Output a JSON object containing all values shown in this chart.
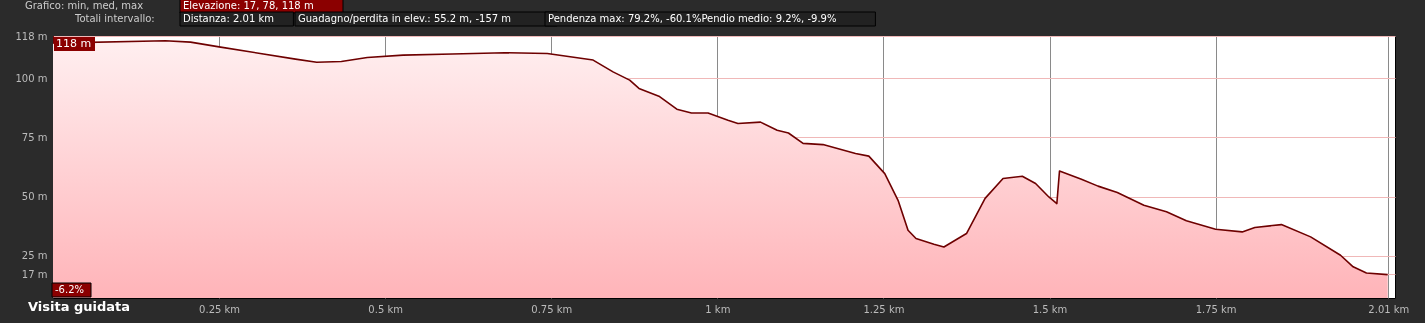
{
  "chart_data": {
    "type": "area",
    "x": [
      0,
      0.001,
      0.169,
      0.207,
      0.25,
      0.365,
      0.397,
      0.434,
      0.473,
      0.527,
      0.601,
      0.68,
      0.744,
      0.813,
      0.843,
      0.868,
      0.882,
      0.912,
      0.939,
      0.961,
      0.986,
      1.016,
      1.031,
      1.065,
      1.09,
      1.107,
      1.129,
      1.159,
      1.208,
      1.228,
      1.252,
      1.272,
      1.287,
      1.299,
      1.326,
      1.341,
      1.375,
      1.403,
      1.43,
      1.459,
      1.479,
      1.499,
      1.511,
      1.515,
      1.548,
      1.573,
      1.602,
      1.642,
      1.676,
      1.706,
      1.75,
      1.79,
      1.809,
      1.849,
      1.893,
      1.938,
      1.957,
      1.977,
      2.009
    ],
    "series": [
      {
        "color": "#6e0000",
        "values": [
          118,
          115,
          116,
          115.4,
          113.4,
          108.2,
          106.9,
          107.2,
          108.9,
          109.9,
          110.4,
          110.9,
          110.6,
          107.8,
          102.8,
          99.3,
          95.8,
          92.5,
          87,
          85.4,
          85.4,
          82.3,
          80.9,
          81.5,
          78.1,
          76.9,
          72.5,
          72,
          68.2,
          67.1,
          59.7,
          48.4,
          35.7,
          32.2,
          29.8,
          28.6,
          34.3,
          49.2,
          57.6,
          58.6,
          55.5,
          49.8,
          47,
          60.8,
          57.3,
          54.4,
          51.7,
          46.3,
          43.5,
          39.7,
          36.1,
          35,
          36.9,
          38.1,
          32.9,
          25.1,
          20.2,
          17.6,
          16.9
        ]
      }
    ],
    "xlim": [
      0,
      2.02
    ],
    "xticks": [
      {
        "value": 0.25,
        "label": "0.25 km"
      },
      {
        "value": 0.5,
        "label": "0.5 km"
      },
      {
        "value": 0.75,
        "label": "0.75 km"
      },
      {
        "value": 1,
        "label": "1 km"
      },
      {
        "value": 1.25,
        "label": "1.25 km"
      },
      {
        "value": 1.5,
        "label": "1.5 km"
      },
      {
        "value": 1.75,
        "label": "1.75 km"
      },
      {
        "value": 2.01,
        "label": "2.01 km"
      }
    ],
    "ylim": [
      7,
      118
    ],
    "yticks": [
      {
        "value": 17,
        "label": "17 m"
      },
      {
        "value": 25,
        "label": "25 m"
      },
      {
        "value": 50,
        "label": "50 m"
      },
      {
        "value": 75,
        "label": "75 m"
      },
      {
        "value": 100,
        "label": "100 m"
      },
      {
        "value": 118,
        "label": "118 m"
      }
    ],
    "grid": true,
    "annotations": [
      "Grafico: min, med, max",
      "Elevazione: 17, 78, 118 m",
      "Totali intervallo:",
      "Distanza: 2.01 km",
      "Guadagno/perdita in elev.: 55.2 m, -157 m",
      "Pendenza max: 79.2%, -60.1%Pendio medio: 9.2%, -9.9%",
      {
        "text": "118 m",
        "x": 0,
        "y": 118
      },
      "-6.2%",
      "Visita guidata"
    ]
  }
}
